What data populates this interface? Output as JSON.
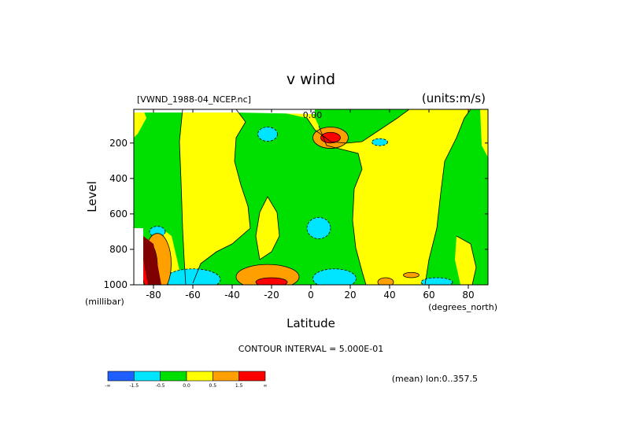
{
  "header": {
    "title": "v wind",
    "file": "[VWND_1988-04_NCEP.nc]",
    "units": "(units:m/s)"
  },
  "footer": {
    "contour_interval": "CONTOUR INTERVAL = 5.000E-01",
    "mean_note": "(mean) lon:0..357.5"
  },
  "chart_data": {
    "type": "heatmap",
    "title": "v wind",
    "xlabel": "Latitude",
    "xunits": "(degrees_north)",
    "ylabel": "Level",
    "yunits": "(millibar)",
    "xlim": [
      -90,
      90
    ],
    "ylim": [
      1000,
      10
    ],
    "xticks": [
      -80,
      -60,
      -40,
      -20,
      0,
      20,
      40,
      60,
      80
    ],
    "xtick_labels": [
      "-80",
      "-60",
      "-40",
      "-20",
      "0",
      "20",
      "40",
      "60",
      "80"
    ],
    "yticks": [
      200,
      400,
      600,
      800,
      1000
    ],
    "ytick_labels": [
      "200",
      "400",
      "600",
      "800",
      "1000"
    ],
    "colorbar": {
      "colors": [
        "#1f5fff",
        "#00e5ff",
        "#00e000",
        "#ffff00",
        "#ffa000",
        "#ff0000"
      ],
      "labels": [
        "-∞",
        "-1.5",
        "-0.5",
        "0.0",
        "0.5",
        "1.5",
        "∞"
      ]
    },
    "contour_labels": [
      "0.00"
    ],
    "regions": [
      {
        "v": "neg2",
        "lat": -18,
        "lev": 990,
        "rx": 6,
        "ry": 15
      },
      {
        "v": "neg2",
        "lat": 13,
        "lev": 990,
        "rx": 7,
        "ry": 15
      },
      {
        "v": "neg2",
        "lat": -60,
        "lev": 985,
        "rx": 9,
        "ry": 25
      },
      {
        "v": "neg1",
        "lat": -60,
        "lev": 970,
        "rx": 14,
        "ry": 60
      },
      {
        "v": "neg1",
        "lat": 12,
        "lev": 965,
        "rx": 11,
        "ry": 55
      },
      {
        "v": "neg1",
        "lat": 64,
        "lev": 985,
        "rx": 8,
        "ry": 25
      },
      {
        "v": "neg1",
        "lat": -22,
        "lev": 150,
        "rx": 5,
        "ry": 40
      },
      {
        "v": "neg1",
        "lat": 4,
        "lev": 680,
        "rx": 6,
        "ry": 60
      },
      {
        "v": "neg1",
        "lat": 35,
        "lev": 195,
        "rx": 4,
        "ry": 20
      },
      {
        "v": "neg1",
        "lat": -78,
        "lev": 700,
        "rx": 4,
        "ry": 30
      },
      {
        "v": "pos1",
        "lat": 10,
        "lev": 170,
        "rx": 9,
        "ry": 60
      },
      {
        "v": "pos2",
        "lat": 10,
        "lev": 170,
        "rx": 5,
        "ry": 30
      },
      {
        "v": "pos1",
        "lat": -22,
        "lev": 955,
        "rx": 16,
        "ry": 70
      },
      {
        "v": "pos2",
        "lat": -20,
        "lev": 985,
        "rx": 8,
        "ry": 25
      },
      {
        "v": "pos1",
        "lat": 38,
        "lev": 985,
        "rx": 4,
        "ry": 25
      },
      {
        "v": "pos1",
        "lat": 51,
        "lev": 945,
        "rx": 4,
        "ry": 15
      },
      {
        "v": "pos1",
        "lat": -78,
        "lev": 880,
        "rx": 7,
        "ry": 170
      },
      {
        "v": "pos2",
        "lat": -82,
        "lev": 900,
        "rx": 4,
        "ry": 130
      }
    ]
  }
}
